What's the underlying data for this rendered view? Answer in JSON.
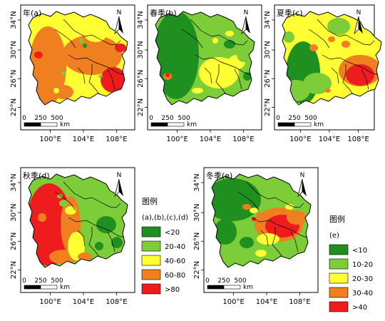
{
  "panels": [
    {
      "label": "年(a)",
      "scheme": "annual"
    },
    {
      "label": "春季(b)",
      "scheme": "spring"
    },
    {
      "label": "夏季(c)",
      "scheme": "summer"
    },
    {
      "label": "秋季(d)",
      "scheme": "autumn"
    },
    {
      "label": "冬季(e)",
      "scheme": "winter"
    }
  ],
  "axes": {
    "lat_ticks": [
      "22°N",
      "26°N",
      "30°N",
      "34°N"
    ],
    "lon_ticks": [
      "100°E",
      "104°E",
      "108°E"
    ]
  },
  "scalebar": {
    "ticks": [
      "0",
      "250",
      "500"
    ],
    "unit": "km"
  },
  "north_label": "N",
  "legend1": {
    "title": "图例",
    "subtitle": "(a),(b),(c),(d)",
    "items": [
      {
        "label": "<20",
        "color": "#1f8f1f"
      },
      {
        "label": "20-40",
        "color": "#7ccd38"
      },
      {
        "label": "40-60",
        "color": "#ffff33"
      },
      {
        "label": "60-80",
        "color": "#f07f20"
      },
      {
        "label": ">80",
        "color": "#ee1c1c"
      }
    ]
  },
  "legend2": {
    "title": "图例",
    "subtitle": "(e)",
    "items": [
      {
        "label": "<10",
        "color": "#1f8f1f"
      },
      {
        "label": "10-20",
        "color": "#7ccd38"
      },
      {
        "label": "20-30",
        "color": "#ffff33"
      },
      {
        "label": "30-40",
        "color": "#f07f20"
      },
      {
        "label": ">40",
        "color": "#ee1c1c"
      }
    ]
  }
}
